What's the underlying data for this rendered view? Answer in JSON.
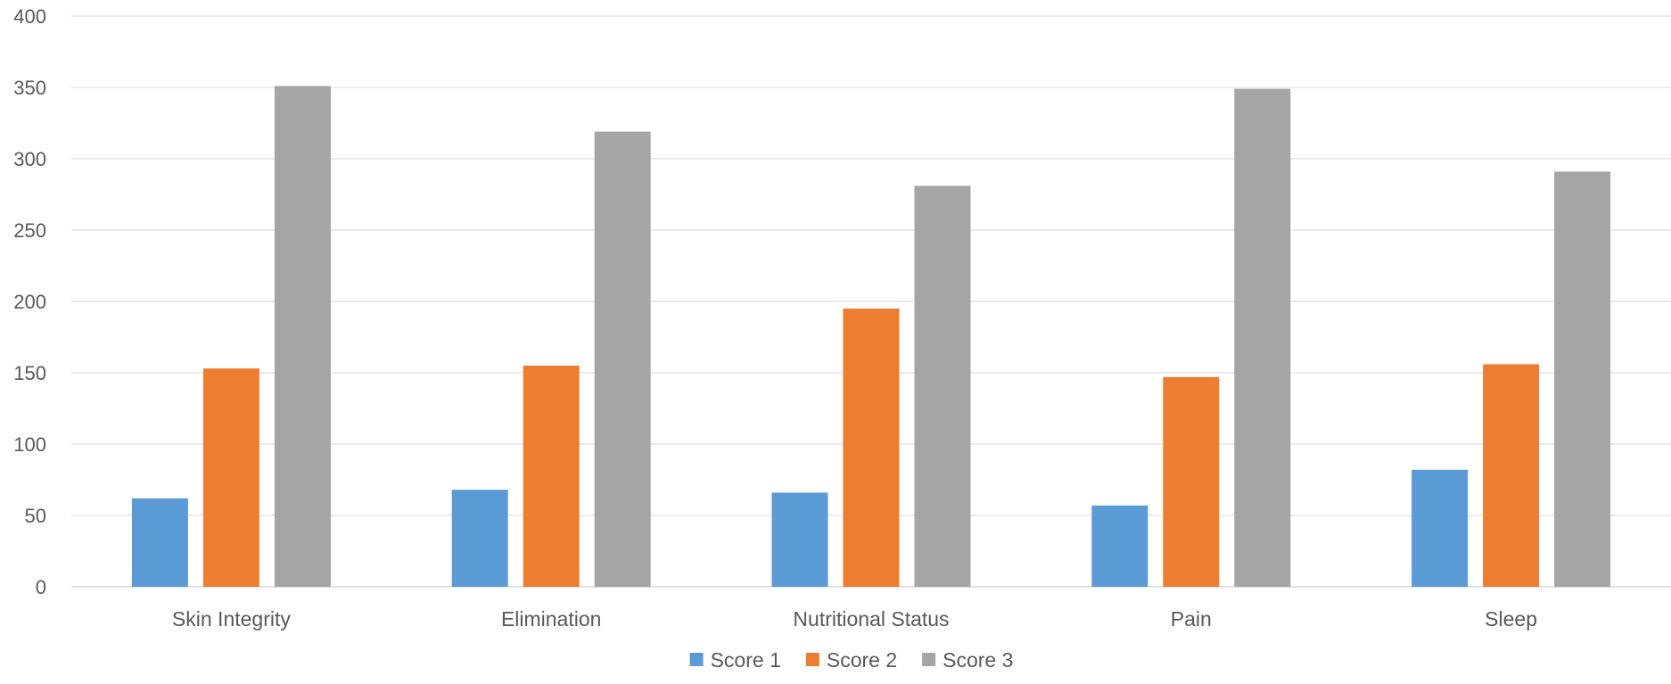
{
  "chart_data": {
    "type": "bar",
    "title": "",
    "xlabel": "",
    "ylabel": "",
    "categories": [
      "Skin Integrity",
      "Elimination",
      "Nutritional Status",
      "Pain",
      "Sleep"
    ],
    "series": [
      {
        "name": "Score 1",
        "color": "#5b9bd5",
        "values": [
          62,
          68,
          66,
          57,
          82
        ]
      },
      {
        "name": "Score 2",
        "color": "#ed7d31",
        "values": [
          153,
          155,
          195,
          147,
          156
        ]
      },
      {
        "name": "Score 3",
        "color": "#a5a5a5",
        "values": [
          351,
          319,
          281,
          349,
          291
        ]
      }
    ],
    "ylim": [
      0,
      400
    ],
    "yticks": [
      0,
      50,
      100,
      150,
      200,
      250,
      300,
      350,
      400
    ],
    "grid": true,
    "legend_position": "bottom"
  }
}
